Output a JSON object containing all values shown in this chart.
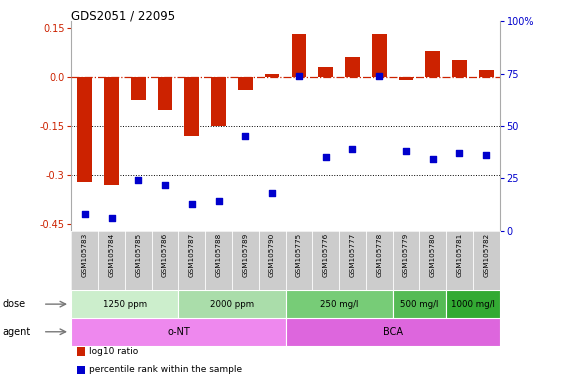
{
  "title": "GDS2051 / 22095",
  "samples": [
    "GSM105783",
    "GSM105784",
    "GSM105785",
    "GSM105786",
    "GSM105787",
    "GSM105788",
    "GSM105789",
    "GSM105790",
    "GSM105775",
    "GSM105776",
    "GSM105777",
    "GSM105778",
    "GSM105779",
    "GSM105780",
    "GSM105781",
    "GSM105782"
  ],
  "log10_ratio": [
    -0.32,
    -0.33,
    -0.07,
    -0.1,
    -0.18,
    -0.15,
    -0.04,
    0.01,
    0.13,
    0.03,
    0.06,
    0.13,
    -0.01,
    0.08,
    0.05,
    0.02
  ],
  "percentile_rank": [
    8,
    6,
    24,
    22,
    13,
    14,
    45,
    18,
    74,
    35,
    39,
    74,
    38,
    34,
    37,
    36
  ],
  "bar_color": "#cc2200",
  "dot_color": "#0000cc",
  "ref_color": "#cc2200",
  "bg_color": "#ffffff",
  "label_bg": "#cccccc",
  "ylim_left": [
    -0.47,
    0.17
  ],
  "ylim_right": [
    0,
    100
  ],
  "yticks_left": [
    -0.45,
    -0.3,
    -0.15,
    0.0,
    0.15
  ],
  "yticks_right": [
    0,
    25,
    50,
    75,
    100
  ],
  "hlines": [
    -0.15,
    -0.3
  ],
  "dose_groups": [
    {
      "label": "1250 ppm",
      "start": 0,
      "end": 4,
      "color": "#cceecc"
    },
    {
      "label": "2000 ppm",
      "start": 4,
      "end": 8,
      "color": "#aaddaa"
    },
    {
      "label": "250 mg/l",
      "start": 8,
      "end": 12,
      "color": "#77cc77"
    },
    {
      "label": "500 mg/l",
      "start": 12,
      "end": 14,
      "color": "#55bb55"
    },
    {
      "label": "1000 mg/l",
      "start": 14,
      "end": 16,
      "color": "#33aa33"
    }
  ],
  "agent_groups": [
    {
      "label": "o-NT",
      "start": 0,
      "end": 8,
      "color": "#ee88ee"
    },
    {
      "label": "BCA",
      "start": 8,
      "end": 16,
      "color": "#dd66dd"
    }
  ],
  "dose_label": "dose",
  "agent_label": "agent",
  "legend_items": [
    {
      "color": "#cc2200",
      "label": "log10 ratio"
    },
    {
      "color": "#0000cc",
      "label": "percentile rank within the sample"
    }
  ]
}
